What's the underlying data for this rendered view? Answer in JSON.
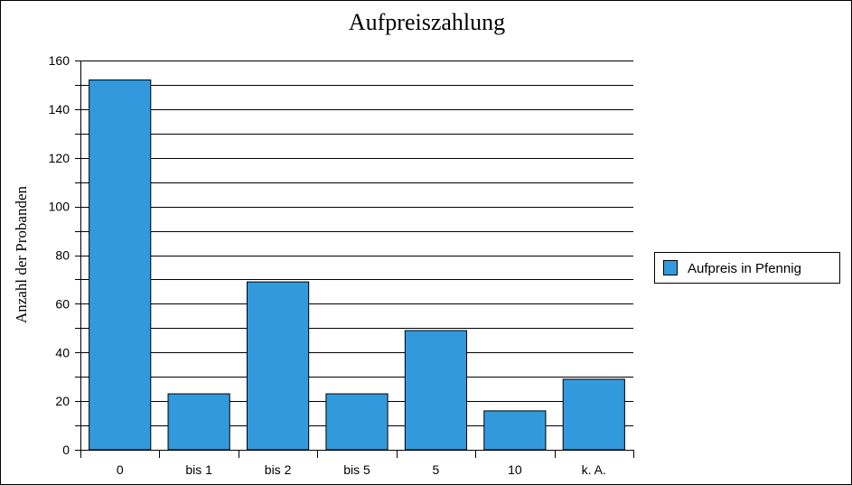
{
  "chart_data": {
    "type": "bar",
    "title": "Aufpreiszahlung",
    "ylabel": "Anzahl der Probanden",
    "xlabel": "",
    "categories": [
      "0",
      "bis 1",
      "bis 2",
      "bis 5",
      "5",
      "10",
      "k. A."
    ],
    "series": [
      {
        "name": "Aufpreis in Pfennig",
        "values": [
          152,
          23,
          69,
          23,
          49,
          16,
          29
        ]
      }
    ],
    "ylim": [
      0,
      160
    ],
    "yticks": [
      "0",
      "20",
      "40",
      "60",
      "80",
      "100",
      "120",
      "140",
      "160"
    ],
    "grid": true,
    "legend_position": "right",
    "bar_color": "#3399dd"
  }
}
